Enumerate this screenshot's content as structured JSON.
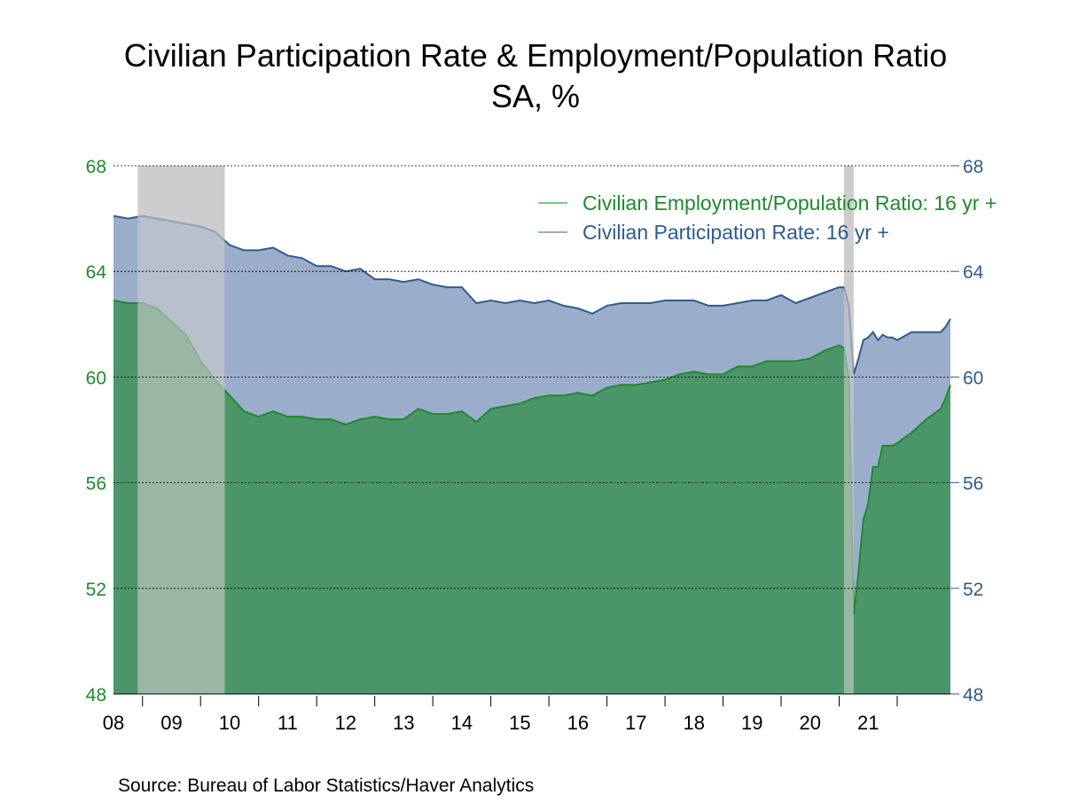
{
  "title": "Civilian Participation Rate & Employment/Population Ratio",
  "subtitle": "SA, %",
  "source": "Source:  Bureau of Labor Statistics/Haver Analytics",
  "chart_data": {
    "type": "area",
    "x_labels": [
      "08",
      "09",
      "10",
      "11",
      "12",
      "13",
      "14",
      "15",
      "16",
      "17",
      "18",
      "19",
      "20",
      "21"
    ],
    "x_start": "2007-07",
    "x_end": "2021-12",
    "ylim": [
      48,
      68
    ],
    "yticks": [
      48,
      52,
      56,
      60,
      64,
      68
    ],
    "left_axis_color": "#1f8a2e",
    "right_axis_color": "#2f5b8f",
    "grid": "dashed horizontal",
    "legend_position": "top-right",
    "recessions": [
      {
        "start": "2007-12",
        "end": "2009-06"
      },
      {
        "start": "2020-02",
        "end": "2020-04"
      }
    ],
    "series": [
      {
        "name": "Civilian Participation Rate: 16 yr +",
        "line_color": "#2f5b8f",
        "fill_color": "#9aaecb",
        "points": [
          [
            "2007-07",
            66.1
          ],
          [
            "2007-10",
            66.0
          ],
          [
            "2008-01",
            66.1
          ],
          [
            "2008-04",
            66.0
          ],
          [
            "2008-07",
            65.9
          ],
          [
            "2008-10",
            65.8
          ],
          [
            "2009-01",
            65.7
          ],
          [
            "2009-04",
            65.5
          ],
          [
            "2009-07",
            65.0
          ],
          [
            "2009-10",
            64.8
          ],
          [
            "2010-01",
            64.8
          ],
          [
            "2010-04",
            64.9
          ],
          [
            "2010-07",
            64.6
          ],
          [
            "2010-10",
            64.5
          ],
          [
            "2011-01",
            64.2
          ],
          [
            "2011-04",
            64.2
          ],
          [
            "2011-07",
            64.0
          ],
          [
            "2011-10",
            64.1
          ],
          [
            "2012-01",
            63.7
          ],
          [
            "2012-04",
            63.7
          ],
          [
            "2012-07",
            63.6
          ],
          [
            "2012-10",
            63.7
          ],
          [
            "2013-01",
            63.5
          ],
          [
            "2013-04",
            63.4
          ],
          [
            "2013-07",
            63.4
          ],
          [
            "2013-10",
            62.8
          ],
          [
            "2014-01",
            62.9
          ],
          [
            "2014-04",
            62.8
          ],
          [
            "2014-07",
            62.9
          ],
          [
            "2014-10",
            62.8
          ],
          [
            "2015-01",
            62.9
          ],
          [
            "2015-04",
            62.7
          ],
          [
            "2015-07",
            62.6
          ],
          [
            "2015-10",
            62.4
          ],
          [
            "2016-01",
            62.7
          ],
          [
            "2016-04",
            62.8
          ],
          [
            "2016-07",
            62.8
          ],
          [
            "2016-10",
            62.8
          ],
          [
            "2017-01",
            62.9
          ],
          [
            "2017-04",
            62.9
          ],
          [
            "2017-07",
            62.9
          ],
          [
            "2017-10",
            62.7
          ],
          [
            "2018-01",
            62.7
          ],
          [
            "2018-04",
            62.8
          ],
          [
            "2018-07",
            62.9
          ],
          [
            "2018-10",
            62.9
          ],
          [
            "2019-01",
            63.1
          ],
          [
            "2019-04",
            62.8
          ],
          [
            "2019-07",
            63.0
          ],
          [
            "2019-10",
            63.2
          ],
          [
            "2020-01",
            63.4
          ],
          [
            "2020-02",
            63.4
          ],
          [
            "2020-03",
            62.7
          ],
          [
            "2020-04",
            60.1
          ],
          [
            "2020-05",
            60.7
          ],
          [
            "2020-06",
            61.4
          ],
          [
            "2020-07",
            61.5
          ],
          [
            "2020-08",
            61.7
          ],
          [
            "2020-09",
            61.4
          ],
          [
            "2020-10",
            61.6
          ],
          [
            "2020-11",
            61.5
          ],
          [
            "2020-12",
            61.5
          ],
          [
            "2021-01",
            61.4
          ],
          [
            "2021-04",
            61.7
          ],
          [
            "2021-07",
            61.7
          ],
          [
            "2021-10",
            61.7
          ],
          [
            "2021-11",
            61.9
          ],
          [
            "2021-12",
            62.2
          ]
        ]
      },
      {
        "name": "Civilian Employment/Population Ratio: 16 yr +",
        "line_color": "#1f8a2e",
        "fill_color": "#4a9668",
        "points": [
          [
            "2007-07",
            62.9
          ],
          [
            "2007-10",
            62.8
          ],
          [
            "2008-01",
            62.8
          ],
          [
            "2008-04",
            62.6
          ],
          [
            "2008-07",
            62.1
          ],
          [
            "2008-10",
            61.6
          ],
          [
            "2009-01",
            60.6
          ],
          [
            "2009-04",
            59.9
          ],
          [
            "2009-07",
            59.3
          ],
          [
            "2009-10",
            58.7
          ],
          [
            "2010-01",
            58.5
          ],
          [
            "2010-04",
            58.7
          ],
          [
            "2010-07",
            58.5
          ],
          [
            "2010-10",
            58.5
          ],
          [
            "2011-01",
            58.4
          ],
          [
            "2011-04",
            58.4
          ],
          [
            "2011-07",
            58.2
          ],
          [
            "2011-10",
            58.4
          ],
          [
            "2012-01",
            58.5
          ],
          [
            "2012-04",
            58.4
          ],
          [
            "2012-07",
            58.4
          ],
          [
            "2012-10",
            58.8
          ],
          [
            "2013-01",
            58.6
          ],
          [
            "2013-04",
            58.6
          ],
          [
            "2013-07",
            58.7
          ],
          [
            "2013-10",
            58.3
          ],
          [
            "2014-01",
            58.8
          ],
          [
            "2014-04",
            58.9
          ],
          [
            "2014-07",
            59.0
          ],
          [
            "2014-10",
            59.2
          ],
          [
            "2015-01",
            59.3
          ],
          [
            "2015-04",
            59.3
          ],
          [
            "2015-07",
            59.4
          ],
          [
            "2015-10",
            59.3
          ],
          [
            "2016-01",
            59.6
          ],
          [
            "2016-04",
            59.7
          ],
          [
            "2016-07",
            59.7
          ],
          [
            "2016-10",
            59.8
          ],
          [
            "2017-01",
            59.9
          ],
          [
            "2017-04",
            60.1
          ],
          [
            "2017-07",
            60.2
          ],
          [
            "2017-10",
            60.1
          ],
          [
            "2018-01",
            60.1
          ],
          [
            "2018-04",
            60.4
          ],
          [
            "2018-07",
            60.4
          ],
          [
            "2018-10",
            60.6
          ],
          [
            "2019-01",
            60.6
          ],
          [
            "2019-04",
            60.6
          ],
          [
            "2019-07",
            60.7
          ],
          [
            "2019-10",
            61.0
          ],
          [
            "2020-01",
            61.2
          ],
          [
            "2020-02",
            61.1
          ],
          [
            "2020-03",
            60.0
          ],
          [
            "2020-04",
            51.0
          ],
          [
            "2020-05",
            52.6
          ],
          [
            "2020-06",
            54.6
          ],
          [
            "2020-07",
            55.2
          ],
          [
            "2020-08",
            56.6
          ],
          [
            "2020-09",
            56.6
          ],
          [
            "2020-10",
            57.4
          ],
          [
            "2020-11",
            57.4
          ],
          [
            "2020-12",
            57.4
          ],
          [
            "2021-01",
            57.5
          ],
          [
            "2021-04",
            57.9
          ],
          [
            "2021-07",
            58.4
          ],
          [
            "2021-10",
            58.8
          ],
          [
            "2021-11",
            59.2
          ],
          [
            "2021-12",
            59.7
          ]
        ]
      }
    ]
  }
}
